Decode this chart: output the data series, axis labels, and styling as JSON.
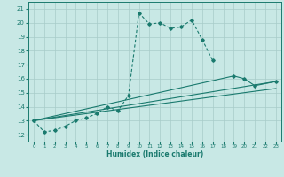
{
  "xlabel": "Humidex (Indice chaleur)",
  "xlim": [
    -0.5,
    23.5
  ],
  "ylim": [
    11.5,
    21.5
  ],
  "yticks": [
    12,
    13,
    14,
    15,
    16,
    17,
    18,
    19,
    20,
    21
  ],
  "xticks": [
    0,
    1,
    2,
    3,
    4,
    5,
    6,
    7,
    8,
    9,
    10,
    11,
    12,
    13,
    14,
    15,
    16,
    17,
    18,
    19,
    20,
    21,
    22,
    23
  ],
  "line_color": "#1a7a6e",
  "bg_color": "#c8e8e5",
  "grid_color": "#a8ccc9",
  "line0": {
    "x": [
      0,
      1,
      2,
      3,
      4,
      5,
      6,
      7,
      8,
      9,
      10,
      11,
      12,
      13,
      14,
      15,
      16,
      17
    ],
    "y": [
      13.0,
      12.2,
      12.3,
      12.6,
      13.0,
      13.2,
      13.5,
      14.0,
      13.7,
      14.8,
      20.7,
      19.9,
      20.0,
      19.6,
      19.7,
      20.2,
      18.8,
      17.3
    ]
  },
  "line1": {
    "x": [
      0,
      19,
      20,
      21,
      23
    ],
    "y": [
      13.0,
      16.2,
      16.0,
      15.5,
      15.8
    ]
  },
  "line2": {
    "x": [
      0,
      23
    ],
    "y": [
      13.0,
      15.8
    ]
  },
  "line3": {
    "x": [
      0,
      23
    ],
    "y": [
      13.0,
      15.3
    ]
  }
}
